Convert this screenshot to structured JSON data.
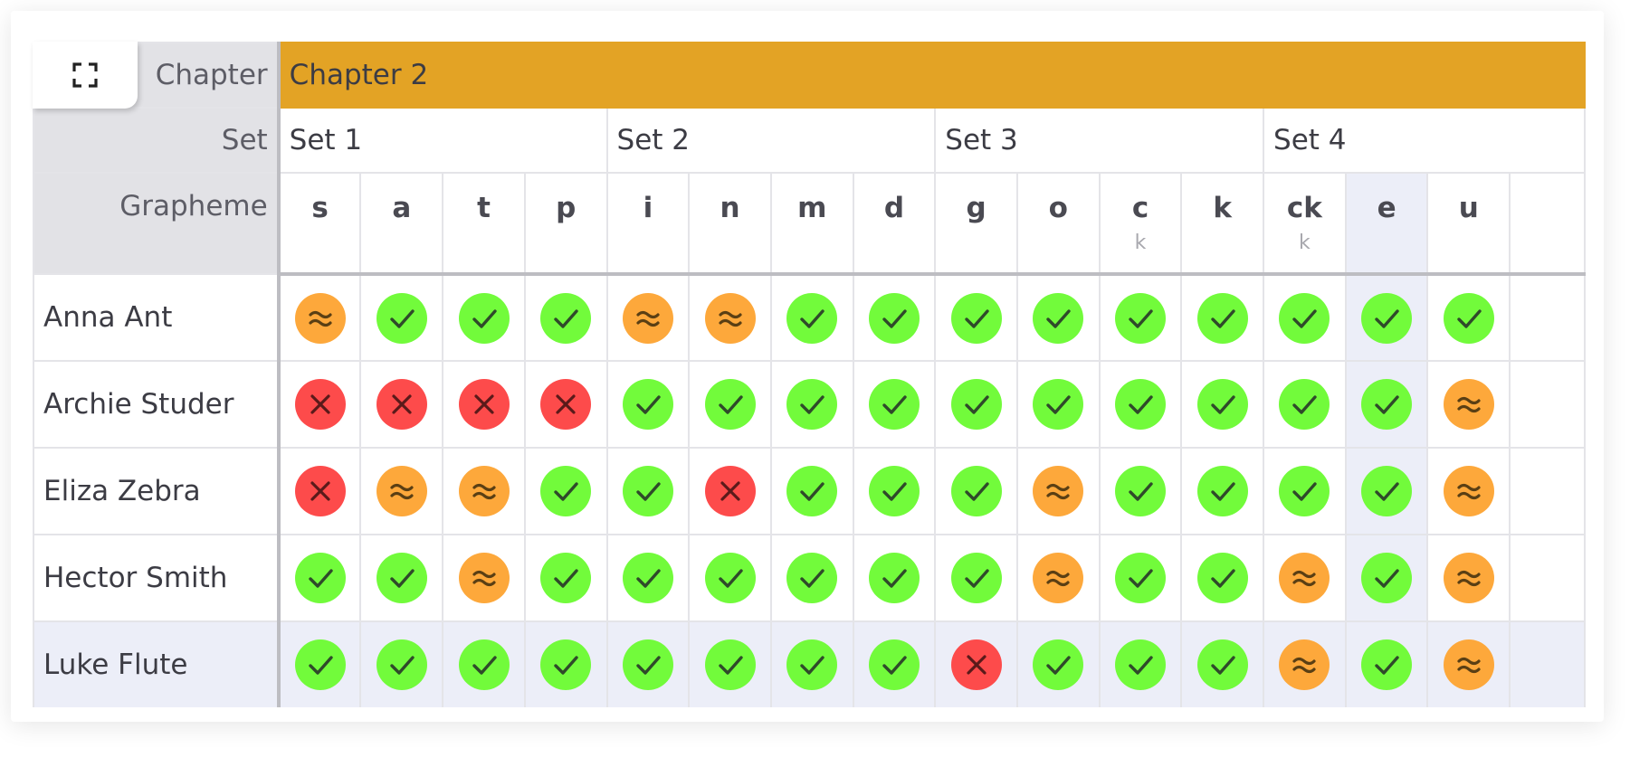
{
  "labels": {
    "chapter": "Chapter",
    "set": "Set",
    "grapheme": "Grapheme"
  },
  "chapter": {
    "name": "Chapter 2",
    "color": "#e3a325"
  },
  "sets": [
    {
      "name": "Set 1",
      "span": 4
    },
    {
      "name": "Set 2",
      "span": 4
    },
    {
      "name": "Set 3",
      "span": 4
    },
    {
      "name": "Set 4",
      "span": 4
    }
  ],
  "graphemes": [
    {
      "g": "s",
      "alt": ""
    },
    {
      "g": "a",
      "alt": ""
    },
    {
      "g": "t",
      "alt": ""
    },
    {
      "g": "p",
      "alt": ""
    },
    {
      "g": "i",
      "alt": ""
    },
    {
      "g": "n",
      "alt": ""
    },
    {
      "g": "m",
      "alt": ""
    },
    {
      "g": "d",
      "alt": ""
    },
    {
      "g": "g",
      "alt": ""
    },
    {
      "g": "o",
      "alt": ""
    },
    {
      "g": "c",
      "alt": "k"
    },
    {
      "g": "k",
      "alt": ""
    },
    {
      "g": "ck",
      "alt": "k"
    },
    {
      "g": "e",
      "alt": ""
    },
    {
      "g": "u",
      "alt": ""
    },
    {
      "g": "",
      "alt": ""
    }
  ],
  "highlight": {
    "column": 13,
    "row": 4
  },
  "legend": {
    "ok": "check-icon",
    "partial": "approx-icon",
    "no": "cross-icon"
  },
  "status_colors": {
    "ok": "#72fb3b",
    "partial": "#fda83b",
    "no": "#fd4b4b"
  },
  "students": [
    {
      "name": "Anna Ant",
      "marks": [
        "partial",
        "ok",
        "ok",
        "ok",
        "partial",
        "partial",
        "ok",
        "ok",
        "ok",
        "ok",
        "ok",
        "ok",
        "ok",
        "ok",
        "ok"
      ]
    },
    {
      "name": "Archie Studer",
      "marks": [
        "no",
        "no",
        "no",
        "no",
        "ok",
        "ok",
        "ok",
        "ok",
        "ok",
        "ok",
        "ok",
        "ok",
        "ok",
        "ok",
        "partial"
      ]
    },
    {
      "name": "Eliza Zebra",
      "marks": [
        "no",
        "partial",
        "partial",
        "ok",
        "ok",
        "no",
        "ok",
        "ok",
        "ok",
        "partial",
        "ok",
        "ok",
        "ok",
        "ok",
        "partial"
      ]
    },
    {
      "name": "Hector Smith",
      "marks": [
        "ok",
        "ok",
        "partial",
        "ok",
        "ok",
        "ok",
        "ok",
        "ok",
        "ok",
        "partial",
        "ok",
        "ok",
        "partial",
        "ok",
        "partial"
      ]
    },
    {
      "name": "Luke Flute",
      "marks": [
        "ok",
        "ok",
        "ok",
        "ok",
        "ok",
        "ok",
        "ok",
        "ok",
        "no",
        "ok",
        "ok",
        "ok",
        "partial",
        "ok",
        "partial"
      ]
    }
  ]
}
